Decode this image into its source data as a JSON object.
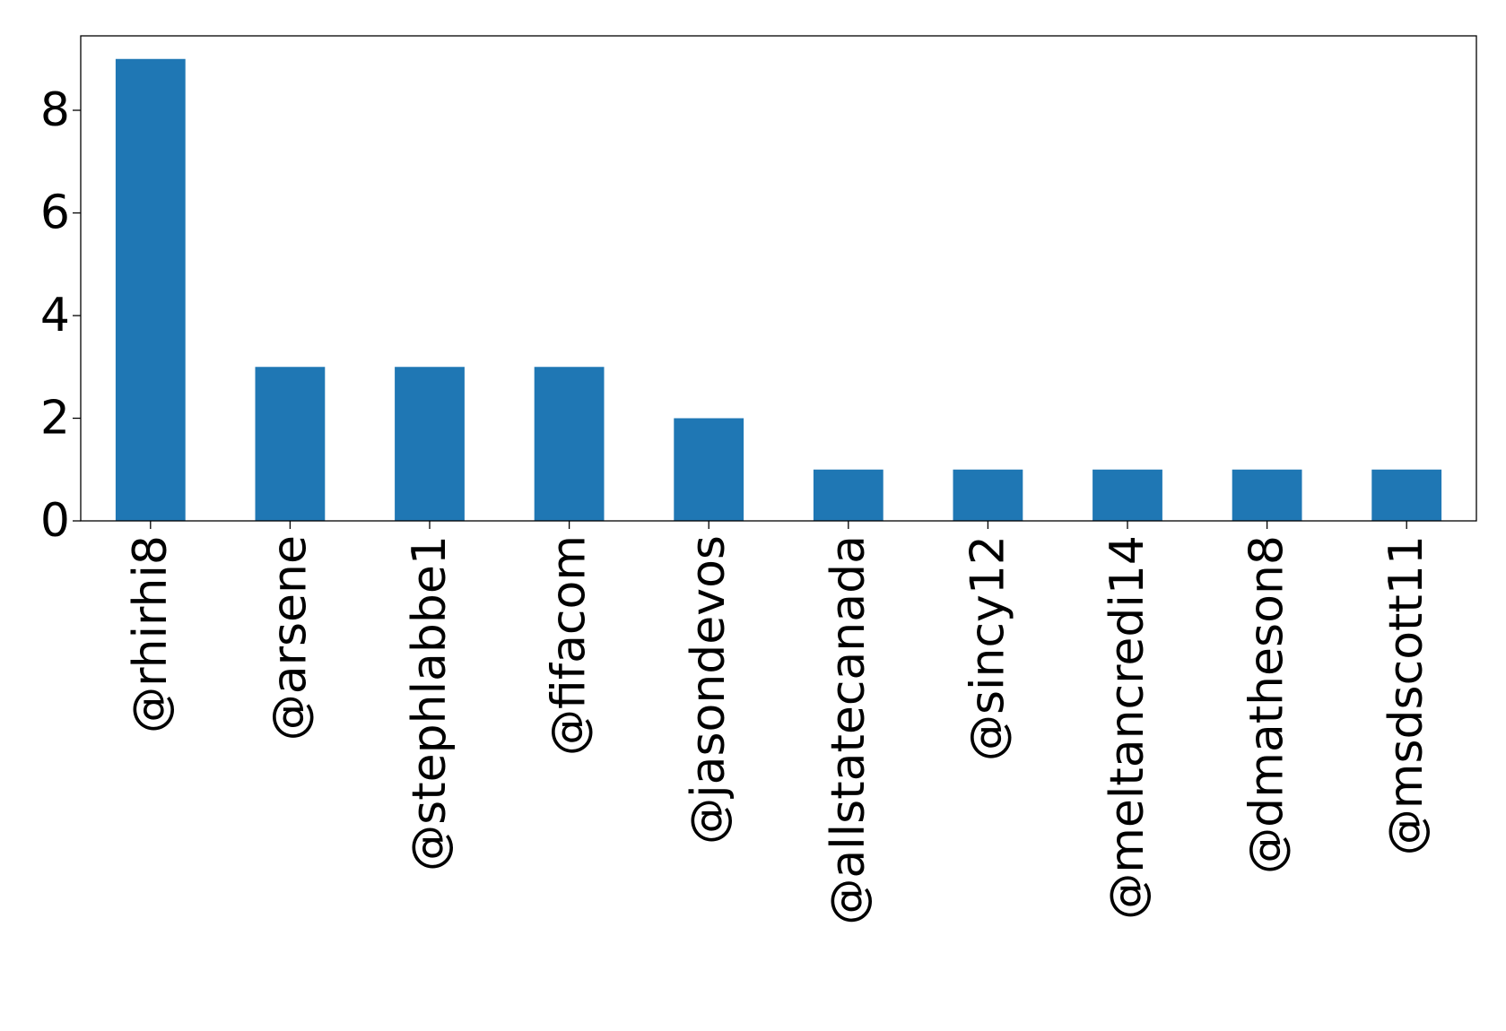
{
  "chart_data": {
    "type": "bar",
    "categories": [
      "@rhirhi8",
      "@arsene",
      "@stephlabbe1",
      "@fifacom",
      "@jasondevos",
      "@allstatecanada",
      "@sincy12",
      "@meltancredi14",
      "@dmatheson8",
      "@msdscott11"
    ],
    "values": [
      9,
      3,
      3,
      3,
      2,
      1,
      1,
      1,
      1,
      1
    ],
    "yticks": [
      "0",
      "2",
      "4",
      "6",
      "8"
    ],
    "ylim": [
      0,
      9.45
    ],
    "bar_color": "#1f77b4",
    "grid": false,
    "legend": false
  }
}
